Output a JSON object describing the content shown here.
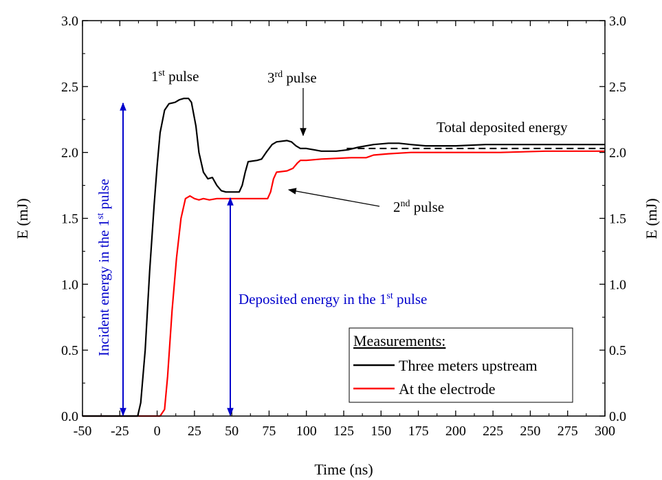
{
  "chart_data": {
    "type": "line",
    "xlabel": "Time (ns)",
    "ylabel_left": "E (mJ)",
    "ylabel_right": "E (mJ)",
    "xlim": [
      -50,
      300
    ],
    "ylim": [
      0.0,
      3.0
    ],
    "x_ticks": [
      -50,
      -25,
      0,
      25,
      50,
      75,
      100,
      125,
      150,
      175,
      200,
      225,
      250,
      275,
      300
    ],
    "y_ticks": [
      "0.0",
      "0.5",
      "1.0",
      "1.5",
      "2.0",
      "2.5",
      "3.0"
    ],
    "legend": {
      "title": "Measurements:",
      "placement": "bottom-right"
    },
    "series": [
      {
        "name": "Three meters upstream",
        "color": "#000000",
        "points": [
          [
            -50,
            0.0
          ],
          [
            -13,
            0.0
          ],
          [
            -11,
            0.1
          ],
          [
            -8,
            0.5
          ],
          [
            -5,
            1.1
          ],
          [
            -2,
            1.6
          ],
          [
            0,
            1.9
          ],
          [
            2,
            2.15
          ],
          [
            5,
            2.32
          ],
          [
            8,
            2.37
          ],
          [
            12,
            2.38
          ],
          [
            15,
            2.4
          ],
          [
            18,
            2.41
          ],
          [
            21,
            2.41
          ],
          [
            23,
            2.38
          ],
          [
            26,
            2.2
          ],
          [
            28,
            2.0
          ],
          [
            31,
            1.85
          ],
          [
            34,
            1.8
          ],
          [
            37,
            1.81
          ],
          [
            40,
            1.75
          ],
          [
            43,
            1.71
          ],
          [
            46,
            1.7
          ],
          [
            55,
            1.7
          ],
          [
            57,
            1.75
          ],
          [
            59,
            1.85
          ],
          [
            61,
            1.93
          ],
          [
            67,
            1.94
          ],
          [
            70,
            1.95
          ],
          [
            73,
            2.0
          ],
          [
            77,
            2.06
          ],
          [
            80,
            2.08
          ],
          [
            87,
            2.09
          ],
          [
            90,
            2.08
          ],
          [
            93,
            2.05
          ],
          [
            96,
            2.03
          ],
          [
            100,
            2.03
          ],
          [
            105,
            2.02
          ],
          [
            110,
            2.01
          ],
          [
            120,
            2.01
          ],
          [
            128,
            2.02
          ],
          [
            135,
            2.04
          ],
          [
            145,
            2.06
          ],
          [
            155,
            2.07
          ],
          [
            162,
            2.07
          ],
          [
            170,
            2.06
          ],
          [
            180,
            2.05
          ],
          [
            200,
            2.05
          ],
          [
            220,
            2.06
          ],
          [
            240,
            2.06
          ],
          [
            260,
            2.06
          ],
          [
            280,
            2.06
          ],
          [
            300,
            2.06
          ]
        ]
      },
      {
        "name": "At the electrode",
        "color": "#ff0000",
        "points": [
          [
            -50,
            0.0
          ],
          [
            2,
            0.0
          ],
          [
            5,
            0.05
          ],
          [
            7,
            0.3
          ],
          [
            10,
            0.8
          ],
          [
            13,
            1.2
          ],
          [
            16,
            1.5
          ],
          [
            19,
            1.65
          ],
          [
            22,
            1.67
          ],
          [
            25,
            1.65
          ],
          [
            28,
            1.64
          ],
          [
            31,
            1.65
          ],
          [
            35,
            1.64
          ],
          [
            40,
            1.65
          ],
          [
            50,
            1.65
          ],
          [
            70,
            1.65
          ],
          [
            74,
            1.65
          ],
          [
            76,
            1.7
          ],
          [
            78,
            1.8
          ],
          [
            80,
            1.85
          ],
          [
            87,
            1.86
          ],
          [
            91,
            1.88
          ],
          [
            94,
            1.92
          ],
          [
            96,
            1.94
          ],
          [
            100,
            1.94
          ],
          [
            110,
            1.95
          ],
          [
            130,
            1.96
          ],
          [
            140,
            1.96
          ],
          [
            145,
            1.98
          ],
          [
            155,
            1.99
          ],
          [
            170,
            2.0
          ],
          [
            200,
            2.0
          ],
          [
            230,
            2.0
          ],
          [
            260,
            2.01
          ],
          [
            280,
            2.01
          ],
          [
            300,
            2.01
          ]
        ]
      }
    ],
    "reference_line": {
      "y": 2.03,
      "x_start": 127,
      "x_end": 300,
      "style": "dashed"
    },
    "annotations": {
      "first_pulse": {
        "base": "1",
        "sup": "st",
        "text": " pulse"
      },
      "third_pulse": {
        "base": "3",
        "sup": "rd",
        "text": " pulse"
      },
      "second_pulse": {
        "base": "2",
        "sup": "nd",
        "text": " pulse"
      },
      "total": "Total deposited energy",
      "incident": {
        "prefix": "Incident energy in the  1",
        "sup": "st",
        "suffix": " pulse",
        "color": "#0000cc"
      },
      "deposited": {
        "prefix": "Deposited energy in the  1",
        "sup": "st",
        "suffix": " pulse",
        "color": "#0000cc"
      }
    }
  }
}
